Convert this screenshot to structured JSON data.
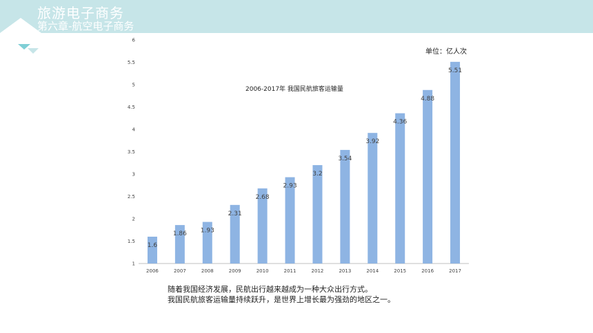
{
  "header": {
    "title": "旅游电子商务",
    "subtitle": "第六章-航空电子商务"
  },
  "colors": {
    "header_bg": "#c6e5e8",
    "accent": "#7fcfd6",
    "bar": "#8eb4e3"
  },
  "chart_data": {
    "type": "bar",
    "title": "2006-2017年  我国民航旅客运输量",
    "unit_label": "单位：亿人次",
    "categories": [
      "2006",
      "2007",
      "2008",
      "2009",
      "2010",
      "2011",
      "2012",
      "2013",
      "2014",
      "2015",
      "2016",
      "2017"
    ],
    "values": [
      1.6,
      1.86,
      1.93,
      2.31,
      2.68,
      2.93,
      3.2,
      3.54,
      3.92,
      4.36,
      4.88,
      5.51
    ],
    "data_labels": [
      "1.6",
      "1.86",
      "1.93",
      "2.31",
      "2.68",
      "2.93",
      "3.2",
      "3.54",
      "3.92",
      "4.36",
      "4.88",
      "5.51"
    ],
    "ylim": [
      1,
      6
    ],
    "y_ticks": [
      "1",
      "1.5",
      "2",
      "2.5",
      "3",
      "3.5",
      "4",
      "4.5",
      "5",
      "5.5",
      "6"
    ],
    "grid": false,
    "legend": "none"
  },
  "caption": {
    "line1": "随着我国经济发展，民航出行越来越成为一种大众出行方式。",
    "line2": "我国民航旅客运输量持续跃升，是世界上增长最为强劲的地区之一。"
  }
}
